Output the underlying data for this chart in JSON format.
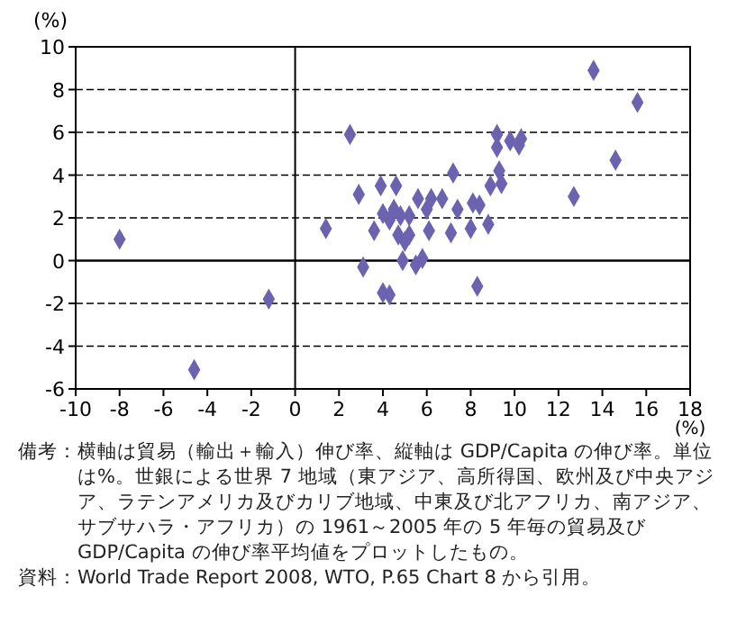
{
  "chart_data": {
    "type": "scatter",
    "xlabel": "(%)",
    "ylabel": "(%)",
    "xlim": [
      -10,
      18
    ],
    "xticks": [
      -10,
      -8,
      -6,
      -4,
      -2,
      0,
      2,
      4,
      6,
      8,
      10,
      12,
      14,
      16,
      18
    ],
    "ylim": [
      -6,
      10
    ],
    "yticks": [
      -6,
      -4,
      -2,
      0,
      2,
      4,
      6,
      8,
      10
    ],
    "grid": "y",
    "marker": "diamond",
    "series": [
      {
        "color": "#6b63b0",
        "x": [
          -8.0,
          -4.6,
          -1.2,
          1.4,
          2.5,
          2.9,
          3.1,
          3.6,
          3.9,
          4.6,
          4.0,
          4.3,
          4.0,
          4.3,
          4.5,
          4.8,
          5.2,
          4.7,
          5.0,
          5.2,
          4.9,
          5.6,
          6.0,
          5.5,
          5.8,
          6.1,
          6.2,
          6.7,
          7.2,
          7.1,
          7.4,
          8.0,
          8.1,
          8.4,
          8.3,
          8.8,
          8.9,
          9.2,
          9.2,
          9.3,
          9.4,
          9.8,
          10.2,
          10.3,
          12.7,
          13.6,
          14.6,
          15.6
        ],
        "values": [
          1.0,
          -5.1,
          -1.8,
          1.5,
          5.9,
          3.1,
          -0.3,
          1.4,
          3.5,
          3.5,
          -1.5,
          -1.6,
          2.2,
          1.9,
          2.4,
          2.1,
          2.1,
          1.2,
          0.9,
          1.2,
          0.0,
          2.9,
          2.4,
          -0.2,
          0.1,
          1.4,
          2.9,
          2.9,
          4.1,
          1.3,
          2.4,
          1.5,
          2.7,
          2.6,
          -1.2,
          1.7,
          3.5,
          5.9,
          5.3,
          4.2,
          3.6,
          5.6,
          5.4,
          5.7,
          3.0,
          8.9,
          4.7,
          7.4
        ]
      }
    ],
    "annotations": [
      "備考：横軸は貿易（輸出＋輸入）伸び率、縦軸は GDP/Capita の伸び率。単位は%。世銀による世界 7 地域（東アジア、高所得国、欧州及び中央アジア、ラテンアメリカ及びカリブ地域、中東及び北アフリカ、南アジア、サブサハラ・アフリカ）の 1961～2005 年の 5 年毎の貿易及び GDP/Capita の伸び率平均値をプロットしたもの。",
      "資料：World Trade Report 2008, WTO, P.65 Chart 8 から引用。"
    ]
  }
}
